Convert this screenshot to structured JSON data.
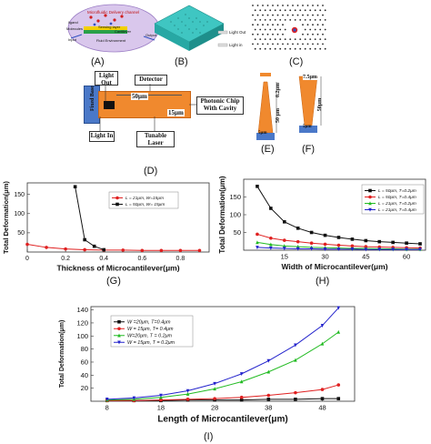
{
  "figure": {
    "panels": {
      "a": {
        "label": "(A)",
        "texts": {
          "channel": "Microfluidic Delivery channel",
          "ligand": "ligand",
          "molecules": "Molecules",
          "sensing_layer": "Sensing layer",
          "cantilever": "Cantilever",
          "input": "Input",
          "output": "Output",
          "fluid_env": "Fluid Environment"
        }
      },
      "b": {
        "label": "(B)",
        "light_out": "Light Out",
        "light_in": "Light in"
      },
      "c": {
        "label": "(C)"
      },
      "d": {
        "label": "(D)",
        "light_out": "Light Out",
        "detector": "Detector",
        "fixed_base": "Fixed Base",
        "dim_50": "50μm",
        "dim_15": "15μm",
        "photonic_chip": "Photonic Chip With Cavity",
        "light_in": "Light In",
        "tunable_laser": "Tunable Laser"
      },
      "e": {
        "label": "(E)",
        "dim_top": "0.2μm",
        "dim_side": "50 μm",
        "dim_bottom": "5μm"
      },
      "f": {
        "label": "(F)",
        "dim_top": "7.5μm",
        "dim_side": "50μm",
        "dim_bottom": "5μm"
      },
      "g": {
        "label": "(G)"
      },
      "h": {
        "label": "(H)"
      },
      "i": {
        "label": "(I)"
      }
    }
  },
  "chart_data": [
    {
      "id": "g",
      "type": "line",
      "xlabel": "Thickness of Microcantilever(μm)",
      "ylabel": "Total Deformation(μm)",
      "xlim": [
        0,
        0.95
      ],
      "ylim": [
        0,
        180
      ],
      "xticks": [
        0,
        0.2,
        0.4,
        0.6,
        0.8
      ],
      "yticks": [
        50,
        100,
        150
      ],
      "legend_position": "center",
      "series": [
        {
          "name": "L = 21μm, W=15μm",
          "color": "#e02020",
          "marker": "circle",
          "x": [
            0,
            0.1,
            0.2,
            0.3,
            0.4,
            0.5,
            0.6,
            0.7,
            0.8,
            0.9
          ],
          "y": [
            20,
            12,
            8,
            6,
            5,
            5,
            4,
            4,
            4,
            4
          ]
        },
        {
          "name": "L = 50μm, W= 15μm",
          "color": "#111111",
          "marker": "square",
          "x": [
            0.25,
            0.3,
            0.35,
            0.4
          ],
          "y": [
            170,
            32,
            15,
            6
          ]
        }
      ]
    },
    {
      "id": "h",
      "type": "line",
      "xlabel": "Width of Microcantilever(μm)",
      "ylabel": "Total Deformation(μm)",
      "xlim": [
        0,
        67
      ],
      "ylim": [
        0,
        200
      ],
      "xticks": [
        15,
        30,
        45,
        60
      ],
      "yticks": [
        50,
        100,
        150
      ],
      "legend_position": "top-right",
      "series": [
        {
          "name": "L = 50μm, T=0.2μm",
          "color": "#111111",
          "marker": "square",
          "x": [
            5,
            10,
            15,
            20,
            25,
            30,
            35,
            40,
            45,
            50,
            55,
            60,
            65
          ],
          "y": [
            180,
            118,
            80,
            62,
            50,
            42,
            36,
            31,
            27,
            24,
            22,
            20,
            18
          ]
        },
        {
          "name": "L = 50μm, T=0.4μm",
          "color": "#e02020",
          "marker": "circle",
          "x": [
            5,
            10,
            15,
            20,
            25,
            30,
            35,
            40,
            45,
            50,
            55,
            60,
            65
          ],
          "y": [
            45,
            34,
            28,
            24,
            20,
            17,
            14,
            12,
            10,
            9,
            8,
            7,
            6
          ]
        },
        {
          "name": "L = 21μm, T=0.2μm",
          "color": "#22bb22",
          "marker": "triangle",
          "x": [
            5,
            10,
            15,
            20,
            25,
            30,
            35,
            40,
            45,
            50,
            55,
            60,
            65
          ],
          "y": [
            22,
            16,
            12,
            10,
            8,
            7,
            6,
            5,
            5,
            4,
            4,
            3,
            3
          ]
        },
        {
          "name": "L = 21μm, T=0.4μm",
          "color": "#2222cc",
          "marker": "triangle-down",
          "x": [
            5,
            10,
            15,
            20,
            25,
            30,
            35,
            40,
            45,
            50,
            55,
            60,
            65
          ],
          "y": [
            8,
            6,
            5,
            4,
            4,
            3,
            3,
            3,
            2,
            2,
            2,
            2,
            2
          ]
        }
      ]
    },
    {
      "id": "i",
      "type": "line",
      "xlabel": "Length of Microcantilever(μm)",
      "ylabel": "Total Deformation(μm)",
      "xlim": [
        5,
        54
      ],
      "ylim": [
        0,
        145
      ],
      "xticks": [
        8,
        18,
        28,
        38,
        48
      ],
      "yticks": [
        20,
        40,
        60,
        80,
        100,
        120,
        140
      ],
      "legend_position": "top-left",
      "series": [
        {
          "name": "W =20μm, T=0.4μm",
          "color": "#111111",
          "marker": "square",
          "x": [
            8,
            13,
            18,
            23,
            28,
            33,
            38,
            43,
            48,
            51
          ],
          "y": [
            1,
            1,
            1,
            2,
            2,
            2,
            3,
            3,
            4,
            4
          ]
        },
        {
          "name": "W = 15μm, T= 0.4μm",
          "color": "#e02020",
          "marker": "circle",
          "x": [
            8,
            13,
            18,
            23,
            28,
            33,
            38,
            43,
            48,
            51
          ],
          "y": [
            1,
            1,
            2,
            3,
            4,
            6,
            9,
            13,
            18,
            25
          ]
        },
        {
          "name": "W=20μm, T = 0.2μm",
          "color": "#22bb22",
          "marker": "triangle",
          "x": [
            8,
            13,
            18,
            23,
            28,
            33,
            38,
            43,
            48,
            51
          ],
          "y": [
            2,
            3,
            6,
            11,
            19,
            30,
            45,
            63,
            88,
            106
          ]
        },
        {
          "name": "W = 15μm, T = 0.2μm",
          "color": "#2222cc",
          "marker": "triangle-down",
          "x": [
            8,
            13,
            18,
            23,
            28,
            33,
            38,
            43,
            48,
            51
          ],
          "y": [
            3,
            5,
            9,
            16,
            27,
            42,
            62,
            86,
            116,
            143
          ]
        }
      ]
    }
  ]
}
